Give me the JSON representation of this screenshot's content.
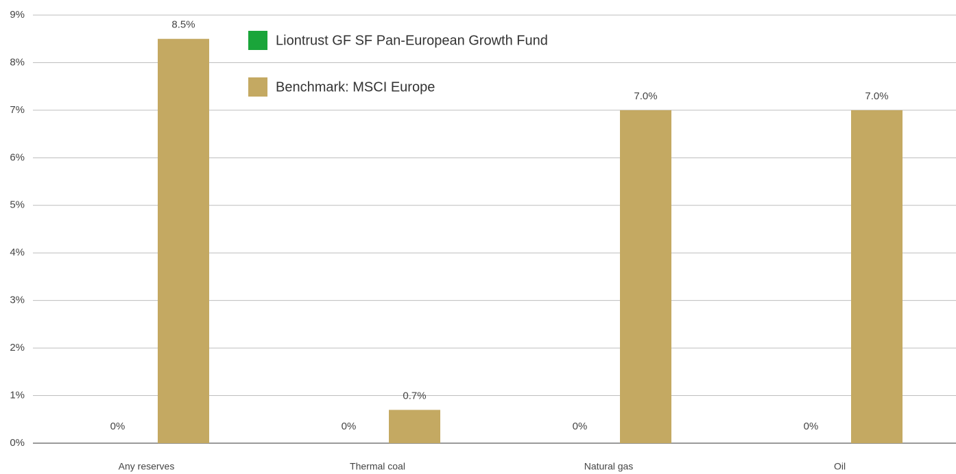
{
  "chart_data": {
    "type": "bar",
    "categories": [
      "Any reserves",
      "Thermal coal",
      "Natural gas",
      "Oil"
    ],
    "series": [
      {
        "name": "Liontrust GF SF Pan-European Growth Fund",
        "color": "#1aa53a",
        "values": [
          0,
          0,
          0,
          0
        ],
        "value_labels": [
          "0%",
          "0%",
          "0%",
          "0%"
        ]
      },
      {
        "name": "Benchmark: MSCI Europe",
        "color": "#c4a962",
        "values": [
          8.5,
          0.7,
          7.0,
          7.0
        ],
        "value_labels": [
          "8.5%",
          "0.7%",
          "7.0%",
          "7.0%"
        ]
      }
    ],
    "ylim": [
      0,
      9
    ],
    "yticks": [
      {
        "value": 0,
        "label": "0%"
      },
      {
        "value": 1,
        "label": "1%"
      },
      {
        "value": 2,
        "label": "2%"
      },
      {
        "value": 3,
        "label": "3%"
      },
      {
        "value": 4,
        "label": "4%"
      },
      {
        "value": 5,
        "label": "5%"
      },
      {
        "value": 6,
        "label": "6%"
      },
      {
        "value": 7,
        "label": "7%"
      },
      {
        "value": 8,
        "label": "8%"
      },
      {
        "value": 9,
        "label": "9%"
      }
    ],
    "grid": true
  }
}
